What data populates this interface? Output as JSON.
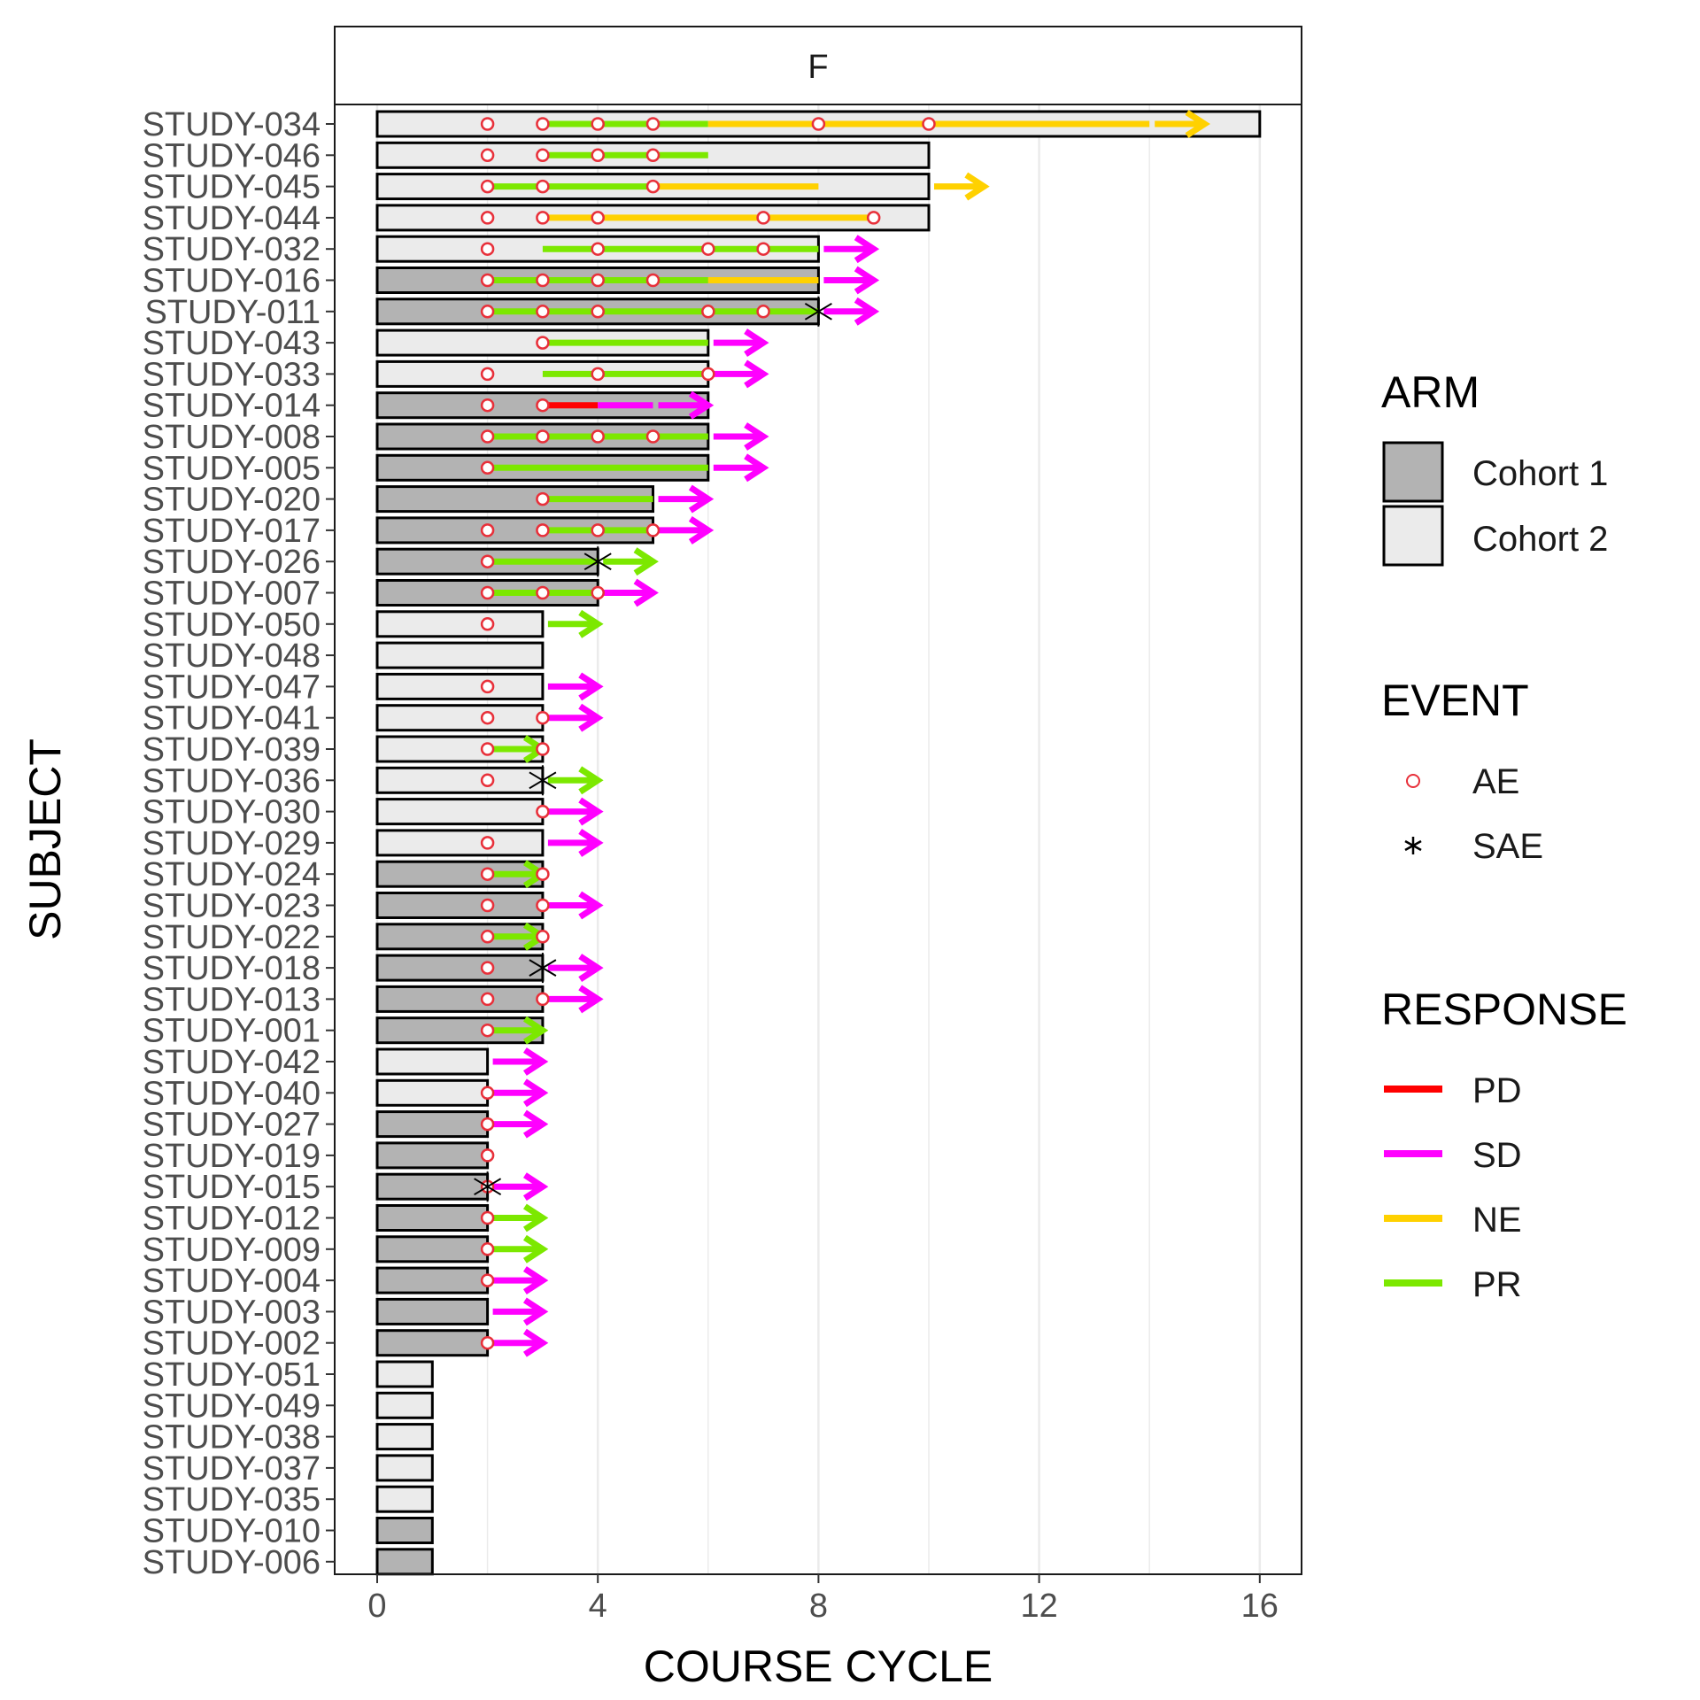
{
  "chart_data": {
    "type": "swimmer",
    "facet_label": "F",
    "xlabel": "COURSE CYCLE",
    "ylabel": "SUBJECT",
    "xlim": [
      0,
      16
    ],
    "xticks": [
      0,
      4,
      8,
      12,
      16
    ],
    "grid": true,
    "legend_position": "right",
    "legends": {
      "arm": {
        "title": "ARM",
        "items": [
          {
            "label": "Cohort 1",
            "color": "#b3b3b3"
          },
          {
            "label": "Cohort 2",
            "color": "#ebebeb"
          }
        ]
      },
      "event": {
        "title": "EVENT",
        "items": [
          {
            "label": "AE",
            "symbol": "circle",
            "color": "#e8303a"
          },
          {
            "label": "SAE",
            "symbol": "asterisk",
            "color": "#000000"
          }
        ]
      },
      "response": {
        "title": "RESPONSE",
        "items": [
          {
            "label": "PD",
            "color": "#ff0000"
          },
          {
            "label": "SD",
            "color": "#ff00ff"
          },
          {
            "label": "NE",
            "color": "#ffd100"
          },
          {
            "label": "PR",
            "color": "#7ce800"
          }
        ]
      }
    },
    "subjects": [
      {
        "id": "STUDY-034",
        "arm": "Cohort 2",
        "cycles": 16,
        "ae": [
          2,
          3,
          4,
          5,
          8,
          10
        ],
        "sae": [],
        "response": [
          {
            "type": "PR",
            "start": 3,
            "end": 6
          },
          {
            "type": "NE",
            "start": 6,
            "end": 14
          }
        ],
        "arrow": {
          "type": "NE",
          "start": 14,
          "end": 15
        }
      },
      {
        "id": "STUDY-046",
        "arm": "Cohort 2",
        "cycles": 10,
        "ae": [
          2,
          3,
          4,
          5
        ],
        "sae": [],
        "response": [
          {
            "type": "PR",
            "start": 3,
            "end": 6
          }
        ],
        "arrow": null
      },
      {
        "id": "STUDY-045",
        "arm": "Cohort 2",
        "cycles": 10,
        "ae": [
          2,
          3,
          5
        ],
        "sae": [],
        "response": [
          {
            "type": "PR",
            "start": 2,
            "end": 5
          },
          {
            "type": "NE",
            "start": 5,
            "end": 8
          }
        ],
        "arrow": {
          "type": "NE",
          "start": 10,
          "end": 11
        }
      },
      {
        "id": "STUDY-044",
        "arm": "Cohort 2",
        "cycles": 10,
        "ae": [
          2,
          3,
          4,
          7,
          9
        ],
        "sae": [],
        "response": [
          {
            "type": "NE",
            "start": 3,
            "end": 9
          }
        ],
        "arrow": null
      },
      {
        "id": "STUDY-032",
        "arm": "Cohort 2",
        "cycles": 8,
        "ae": [
          2,
          4,
          6,
          7
        ],
        "sae": [],
        "response": [
          {
            "type": "PR",
            "start": 3,
            "end": 8
          }
        ],
        "arrow": {
          "type": "SD",
          "start": 8,
          "end": 9
        }
      },
      {
        "id": "STUDY-016",
        "arm": "Cohort 1",
        "cycles": 8,
        "ae": [
          2,
          3,
          4,
          5
        ],
        "sae": [],
        "response": [
          {
            "type": "PR",
            "start": 2,
            "end": 6
          },
          {
            "type": "NE",
            "start": 6,
            "end": 8
          }
        ],
        "arrow": {
          "type": "SD",
          "start": 8,
          "end": 9
        }
      },
      {
        "id": "STUDY-011",
        "arm": "Cohort 1",
        "cycles": 8,
        "ae": [
          2,
          3,
          4,
          6,
          7
        ],
        "sae": [
          8
        ],
        "response": [
          {
            "type": "PR",
            "start": 2,
            "end": 8
          }
        ],
        "arrow": {
          "type": "SD",
          "start": 8,
          "end": 9
        }
      },
      {
        "id": "STUDY-043",
        "arm": "Cohort 2",
        "cycles": 6,
        "ae": [
          3
        ],
        "sae": [],
        "response": [
          {
            "type": "PR",
            "start": 3,
            "end": 6
          }
        ],
        "arrow": {
          "type": "SD",
          "start": 6,
          "end": 7
        }
      },
      {
        "id": "STUDY-033",
        "arm": "Cohort 2",
        "cycles": 6,
        "ae": [
          2,
          4,
          6
        ],
        "sae": [],
        "response": [
          {
            "type": "PR",
            "start": 3,
            "end": 6
          }
        ],
        "arrow": {
          "type": "SD",
          "start": 6,
          "end": 7
        }
      },
      {
        "id": "STUDY-014",
        "arm": "Cohort 1",
        "cycles": 6,
        "ae": [
          2,
          3
        ],
        "sae": [],
        "response": [
          {
            "type": "PD",
            "start": 3,
            "end": 4
          },
          {
            "type": "SD",
            "start": 4,
            "end": 5
          }
        ],
        "arrow": {
          "type": "SD",
          "start": 5,
          "end": 6
        }
      },
      {
        "id": "STUDY-008",
        "arm": "Cohort 1",
        "cycles": 6,
        "ae": [
          2,
          3,
          4,
          5
        ],
        "sae": [],
        "response": [
          {
            "type": "PR",
            "start": 2,
            "end": 6
          }
        ],
        "arrow": {
          "type": "SD",
          "start": 6,
          "end": 7
        }
      },
      {
        "id": "STUDY-005",
        "arm": "Cohort 1",
        "cycles": 6,
        "ae": [
          2
        ],
        "sae": [],
        "response": [
          {
            "type": "PR",
            "start": 2,
            "end": 6
          }
        ],
        "arrow": {
          "type": "SD",
          "start": 6,
          "end": 7
        }
      },
      {
        "id": "STUDY-020",
        "arm": "Cohort 1",
        "cycles": 5,
        "ae": [
          3
        ],
        "sae": [],
        "response": [
          {
            "type": "PR",
            "start": 3,
            "end": 5
          }
        ],
        "arrow": {
          "type": "SD",
          "start": 5,
          "end": 6
        }
      },
      {
        "id": "STUDY-017",
        "arm": "Cohort 1",
        "cycles": 5,
        "ae": [
          2,
          3,
          4,
          5
        ],
        "sae": [],
        "response": [
          {
            "type": "PR",
            "start": 3,
            "end": 5
          }
        ],
        "arrow": {
          "type": "SD",
          "start": 5,
          "end": 6
        }
      },
      {
        "id": "STUDY-026",
        "arm": "Cohort 1",
        "cycles": 4,
        "ae": [
          2
        ],
        "sae": [
          4
        ],
        "response": [
          {
            "type": "PR",
            "start": 2,
            "end": 4
          }
        ],
        "arrow": {
          "type": "PR",
          "start": 4,
          "end": 5
        }
      },
      {
        "id": "STUDY-007",
        "arm": "Cohort 1",
        "cycles": 4,
        "ae": [
          2,
          3,
          4
        ],
        "sae": [],
        "response": [
          {
            "type": "PR",
            "start": 2,
            "end": 4
          }
        ],
        "arrow": {
          "type": "SD",
          "start": 4,
          "end": 5
        }
      },
      {
        "id": "STUDY-050",
        "arm": "Cohort 2",
        "cycles": 3,
        "ae": [
          2
        ],
        "sae": [],
        "response": [],
        "arrow": {
          "type": "PR",
          "start": 3,
          "end": 4
        }
      },
      {
        "id": "STUDY-048",
        "arm": "Cohort 2",
        "cycles": 3,
        "ae": [],
        "sae": [],
        "response": [],
        "arrow": null
      },
      {
        "id": "STUDY-047",
        "arm": "Cohort 2",
        "cycles": 3,
        "ae": [
          2
        ],
        "sae": [],
        "response": [],
        "arrow": {
          "type": "SD",
          "start": 3,
          "end": 4
        }
      },
      {
        "id": "STUDY-041",
        "arm": "Cohort 2",
        "cycles": 3,
        "ae": [
          2,
          3
        ],
        "sae": [],
        "response": [],
        "arrow": {
          "type": "SD",
          "start": 3,
          "end": 4
        }
      },
      {
        "id": "STUDY-039",
        "arm": "Cohort 2",
        "cycles": 3,
        "ae": [
          2,
          3
        ],
        "sae": [],
        "response": [],
        "arrow": {
          "type": "PR",
          "start": 2,
          "end": 3
        }
      },
      {
        "id": "STUDY-036",
        "arm": "Cohort 2",
        "cycles": 3,
        "ae": [
          2
        ],
        "sae": [
          3
        ],
        "response": [],
        "arrow": {
          "type": "PR",
          "start": 3,
          "end": 4
        }
      },
      {
        "id": "STUDY-030",
        "arm": "Cohort 2",
        "cycles": 3,
        "ae": [
          3
        ],
        "sae": [],
        "response": [],
        "arrow": {
          "type": "SD",
          "start": 3,
          "end": 4
        }
      },
      {
        "id": "STUDY-029",
        "arm": "Cohort 2",
        "cycles": 3,
        "ae": [
          2
        ],
        "sae": [],
        "response": [],
        "arrow": {
          "type": "SD",
          "start": 3,
          "end": 4
        }
      },
      {
        "id": "STUDY-024",
        "arm": "Cohort 1",
        "cycles": 3,
        "ae": [
          2,
          3
        ],
        "sae": [],
        "response": [],
        "arrow": {
          "type": "PR",
          "start": 2,
          "end": 3
        }
      },
      {
        "id": "STUDY-023",
        "arm": "Cohort 1",
        "cycles": 3,
        "ae": [
          2,
          3
        ],
        "sae": [],
        "response": [],
        "arrow": {
          "type": "SD",
          "start": 3,
          "end": 4
        }
      },
      {
        "id": "STUDY-022",
        "arm": "Cohort 1",
        "cycles": 3,
        "ae": [
          2,
          3
        ],
        "sae": [],
        "response": [],
        "arrow": {
          "type": "PR",
          "start": 2,
          "end": 3
        }
      },
      {
        "id": "STUDY-018",
        "arm": "Cohort 1",
        "cycles": 3,
        "ae": [
          2
        ],
        "sae": [
          3
        ],
        "response": [],
        "arrow": {
          "type": "SD",
          "start": 3,
          "end": 4
        }
      },
      {
        "id": "STUDY-013",
        "arm": "Cohort 1",
        "cycles": 3,
        "ae": [
          2,
          3
        ],
        "sae": [],
        "response": [],
        "arrow": {
          "type": "SD",
          "start": 3,
          "end": 4
        }
      },
      {
        "id": "STUDY-001",
        "arm": "Cohort 1",
        "cycles": 3,
        "ae": [
          2
        ],
        "sae": [],
        "response": [],
        "arrow": {
          "type": "PR",
          "start": 2,
          "end": 3
        }
      },
      {
        "id": "STUDY-042",
        "arm": "Cohort 2",
        "cycles": 2,
        "ae": [],
        "sae": [],
        "response": [],
        "arrow": {
          "type": "SD",
          "start": 2,
          "end": 3
        }
      },
      {
        "id": "STUDY-040",
        "arm": "Cohort 2",
        "cycles": 2,
        "ae": [
          2
        ],
        "sae": [],
        "response": [],
        "arrow": {
          "type": "SD",
          "start": 2,
          "end": 3
        }
      },
      {
        "id": "STUDY-027",
        "arm": "Cohort 1",
        "cycles": 2,
        "ae": [
          2
        ],
        "sae": [],
        "response": [],
        "arrow": {
          "type": "SD",
          "start": 2,
          "end": 3
        }
      },
      {
        "id": "STUDY-019",
        "arm": "Cohort 1",
        "cycles": 2,
        "ae": [
          2
        ],
        "sae": [],
        "response": [],
        "arrow": null
      },
      {
        "id": "STUDY-015",
        "arm": "Cohort 1",
        "cycles": 2,
        "ae": [
          2
        ],
        "sae": [
          2
        ],
        "response": [],
        "arrow": {
          "type": "SD",
          "start": 2,
          "end": 3
        }
      },
      {
        "id": "STUDY-012",
        "arm": "Cohort 1",
        "cycles": 2,
        "ae": [
          2
        ],
        "sae": [],
        "response": [],
        "arrow": {
          "type": "PR",
          "start": 2,
          "end": 3
        }
      },
      {
        "id": "STUDY-009",
        "arm": "Cohort 1",
        "cycles": 2,
        "ae": [
          2
        ],
        "sae": [],
        "response": [],
        "arrow": {
          "type": "PR",
          "start": 2,
          "end": 3
        }
      },
      {
        "id": "STUDY-004",
        "arm": "Cohort 1",
        "cycles": 2,
        "ae": [
          2
        ],
        "sae": [],
        "response": [],
        "arrow": {
          "type": "SD",
          "start": 2,
          "end": 3
        }
      },
      {
        "id": "STUDY-003",
        "arm": "Cohort 1",
        "cycles": 2,
        "ae": [],
        "sae": [],
        "response": [],
        "arrow": {
          "type": "SD",
          "start": 2,
          "end": 3
        }
      },
      {
        "id": "STUDY-002",
        "arm": "Cohort 1",
        "cycles": 2,
        "ae": [
          2
        ],
        "sae": [],
        "response": [],
        "arrow": {
          "type": "SD",
          "start": 2,
          "end": 3
        }
      },
      {
        "id": "STUDY-051",
        "arm": "Cohort 2",
        "cycles": 1,
        "ae": [],
        "sae": [],
        "response": [],
        "arrow": null
      },
      {
        "id": "STUDY-049",
        "arm": "Cohort 2",
        "cycles": 1,
        "ae": [],
        "sae": [],
        "response": [],
        "arrow": null
      },
      {
        "id": "STUDY-038",
        "arm": "Cohort 2",
        "cycles": 1,
        "ae": [],
        "sae": [],
        "response": [],
        "arrow": null
      },
      {
        "id": "STUDY-037",
        "arm": "Cohort 2",
        "cycles": 1,
        "ae": [],
        "sae": [],
        "response": [],
        "arrow": null
      },
      {
        "id": "STUDY-035",
        "arm": "Cohort 2",
        "cycles": 1,
        "ae": [],
        "sae": [],
        "response": [],
        "arrow": null
      },
      {
        "id": "STUDY-010",
        "arm": "Cohort 1",
        "cycles": 1,
        "ae": [],
        "sae": [],
        "response": [],
        "arrow": null
      },
      {
        "id": "STUDY-006",
        "arm": "Cohort 1",
        "cycles": 1,
        "ae": [],
        "sae": [],
        "response": [],
        "arrow": null
      }
    ]
  }
}
